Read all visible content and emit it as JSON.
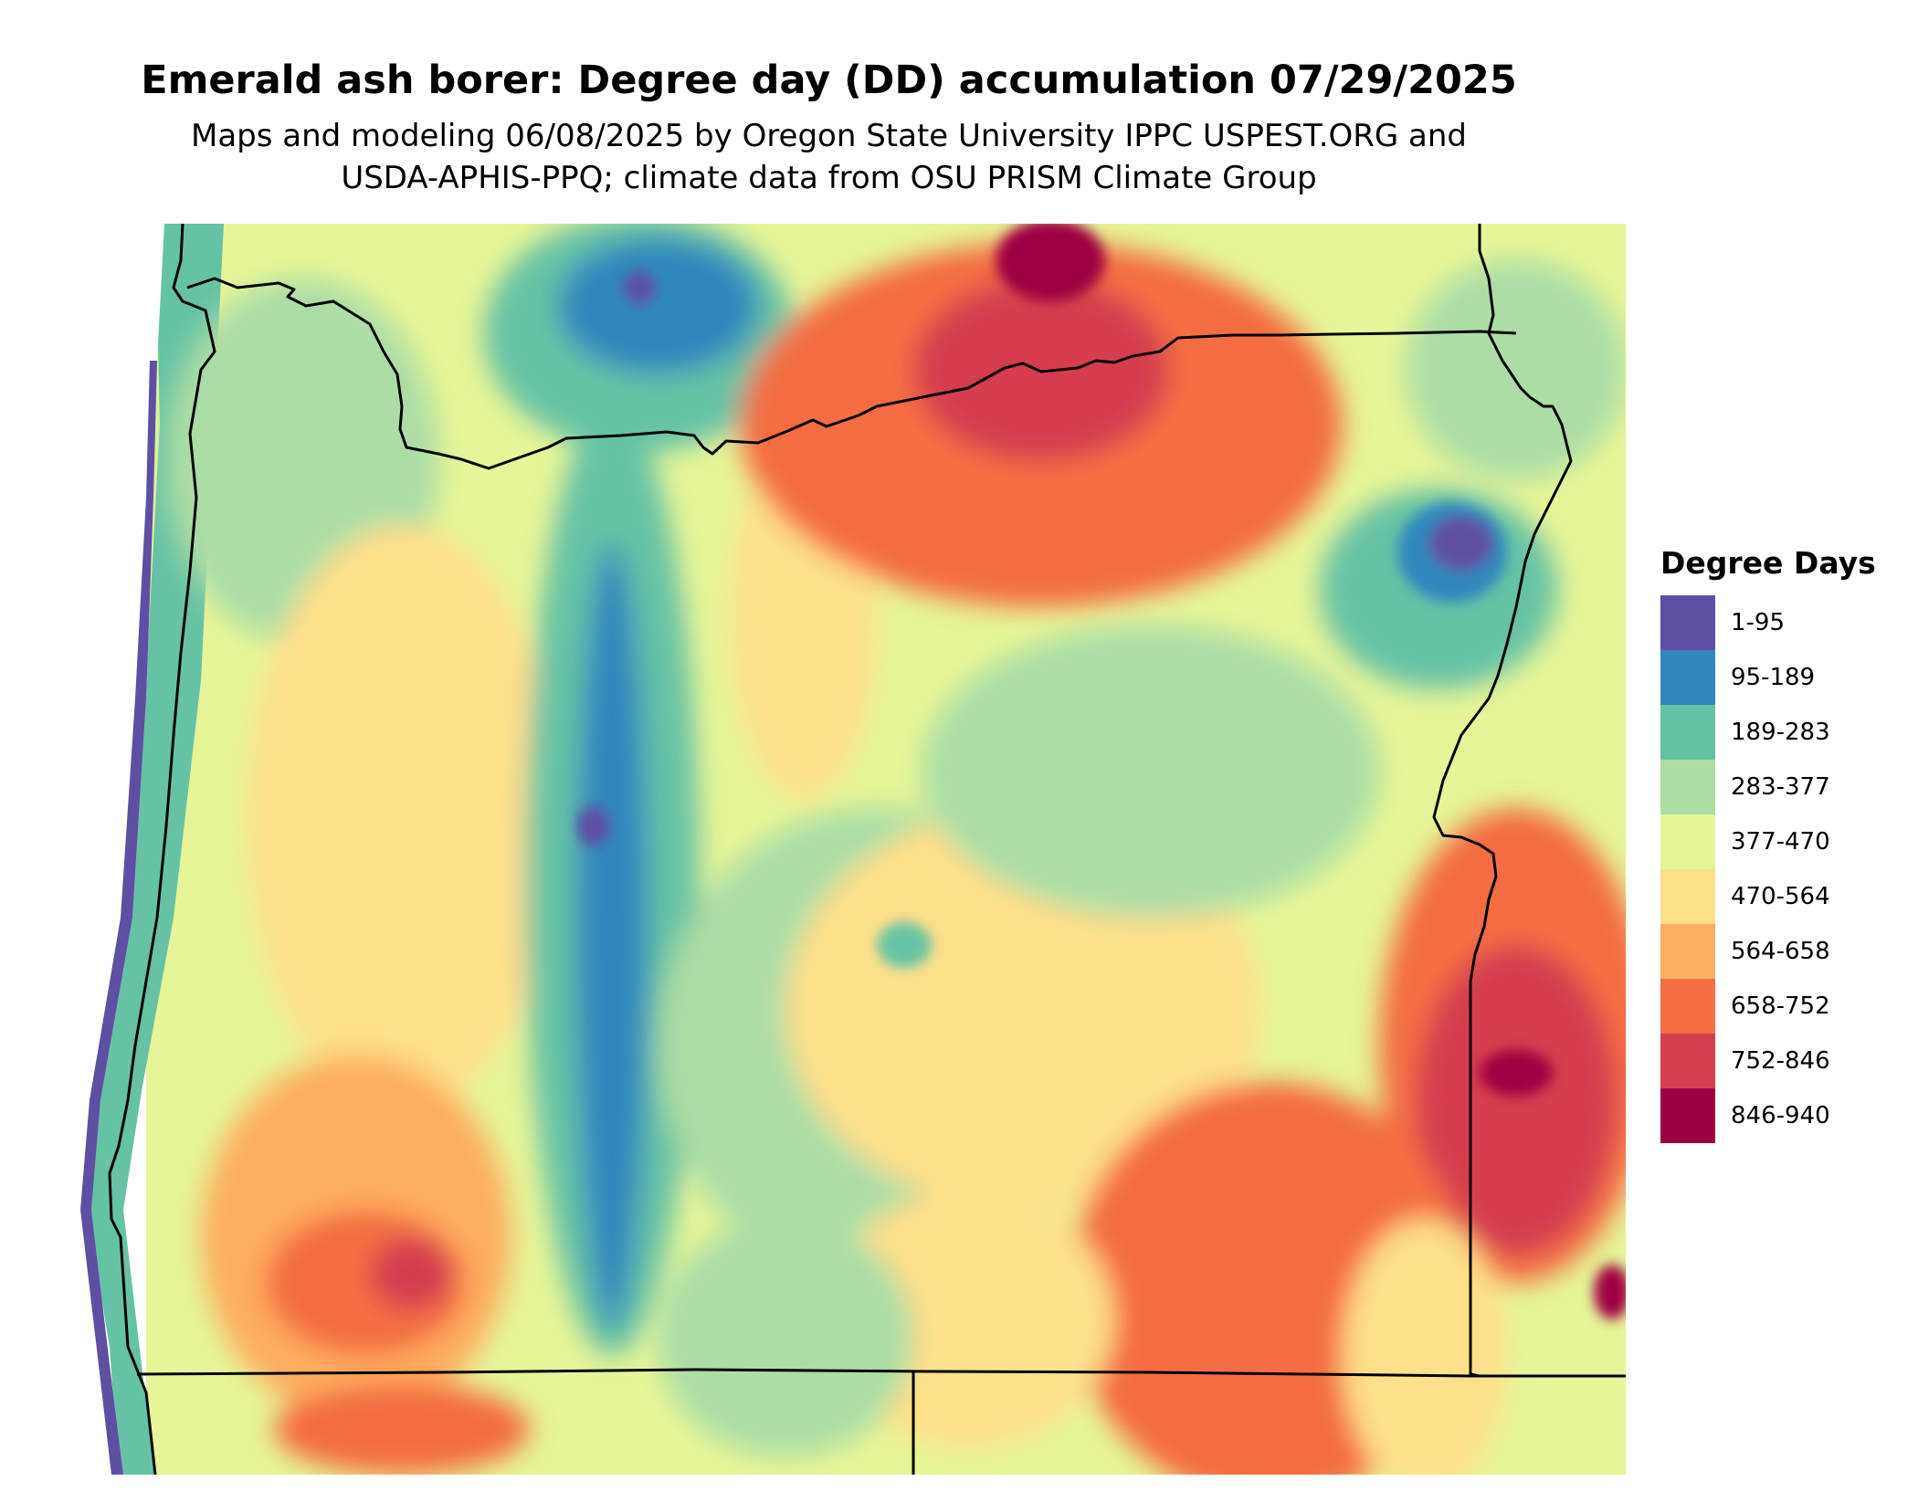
{
  "title": "Emerald ash borer: Degree day (DD) accumulation 07/29/2025",
  "subtitle_lines": [
    "Maps and modeling 06/08/2025 by Oregon State University IPPC USPEST.ORG and",
    "USDA-APHIS-PPQ; climate data from OSU PRISM Climate Group"
  ],
  "legend": {
    "title": "Degree Days",
    "items": [
      {
        "label": "1-95",
        "color": "#5e4fa2"
      },
      {
        "label": "95-189",
        "color": "#3288bd"
      },
      {
        "label": "189-283",
        "color": "#66c2a5"
      },
      {
        "label": "283-377",
        "color": "#abdda4"
      },
      {
        "label": "377-470",
        "color": "#e6f598"
      },
      {
        "label": "470-564",
        "color": "#fee08b"
      },
      {
        "label": "564-658",
        "color": "#fdae61"
      },
      {
        "label": "658-752",
        "color": "#f46d43"
      },
      {
        "label": "752-846",
        "color": "#d53e4f"
      },
      {
        "label": "846-940",
        "color": "#9e0142"
      }
    ]
  }
}
